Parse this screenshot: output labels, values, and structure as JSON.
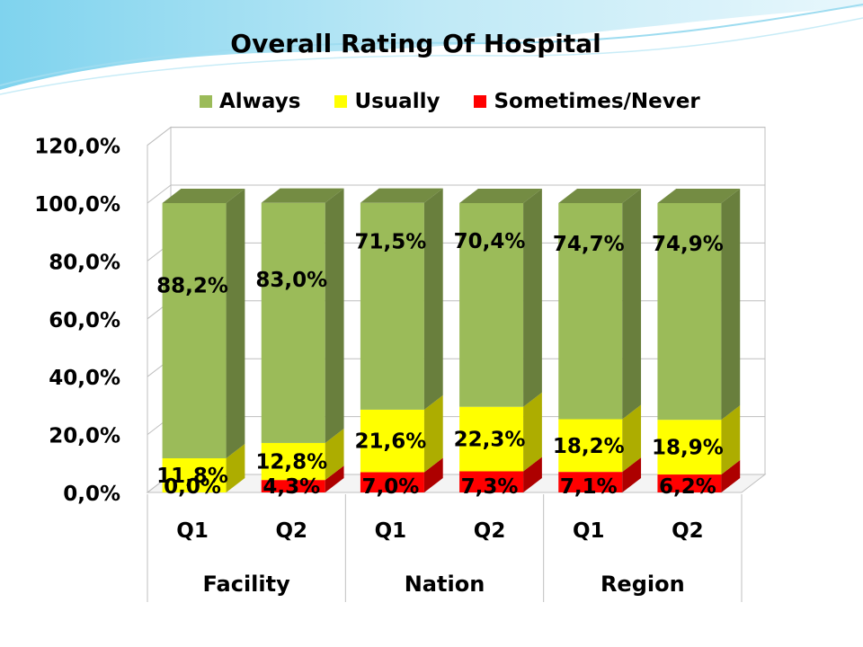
{
  "chart_data": {
    "type": "bar",
    "stacked": true,
    "three_d": true,
    "title": "Overall Rating Of Hospital",
    "groups": [
      "Facility",
      "Nation",
      "Region"
    ],
    "categories": [
      "Q1",
      "Q2",
      "Q1",
      "Q2",
      "Q1",
      "Q2"
    ],
    "series": [
      {
        "name": "Sometimes/Never",
        "color": "#ff0000",
        "values": [
          0.0,
          4.3,
          7.0,
          7.3,
          7.1,
          6.2
        ],
        "labels": [
          "0,0%",
          "4,3%",
          "7,0%",
          "7,3%",
          "7,1%",
          "6,2%"
        ]
      },
      {
        "name": "Usually",
        "color": "#ffff00",
        "values": [
          11.8,
          12.8,
          21.6,
          22.3,
          18.2,
          18.9
        ],
        "labels": [
          "11,8%",
          "12,8%",
          "21,6%",
          "22,3%",
          "18,2%",
          "18,9%"
        ]
      },
      {
        "name": "Always",
        "color": "#9bbb59",
        "values": [
          88.2,
          83.0,
          71.5,
          70.4,
          74.7,
          74.9
        ],
        "labels": [
          "88,2%",
          "83,0%",
          "71,5%",
          "70,4%",
          "74,7%",
          "74,9%"
        ]
      }
    ],
    "legend_order": [
      "Always",
      "Usually",
      "Sometimes/Never"
    ],
    "yticks": [
      "0,0%",
      "20,0%",
      "40,0%",
      "60,0%",
      "80,0%",
      "100,0%",
      "120,0%"
    ],
    "ylim": [
      0,
      120
    ],
    "grid": true,
    "legend_position": "top"
  }
}
